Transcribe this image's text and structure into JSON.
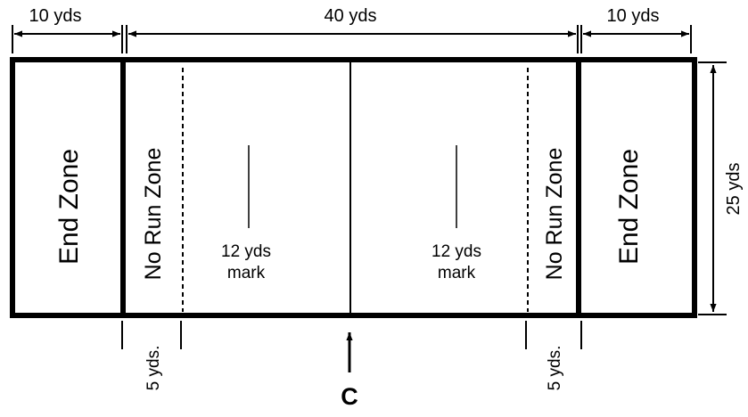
{
  "dimensions": {
    "left_end_zone": "10 yds",
    "playing_field": "40 yds",
    "right_end_zone": "10 yds",
    "field_width": "25 yds"
  },
  "zones": {
    "left_end_zone": "End Zone",
    "right_end_zone": "End Zone",
    "left_no_run_zone": "No Run Zone",
    "right_no_run_zone": "No Run Zone"
  },
  "marks": {
    "left": {
      "line1": "12 yds",
      "line2": "mark"
    },
    "right": {
      "line1": "12 yds",
      "line2": "mark"
    }
  },
  "no_run_width": {
    "left": "5 yds.",
    "right": "5 yds."
  },
  "center_label": "C"
}
